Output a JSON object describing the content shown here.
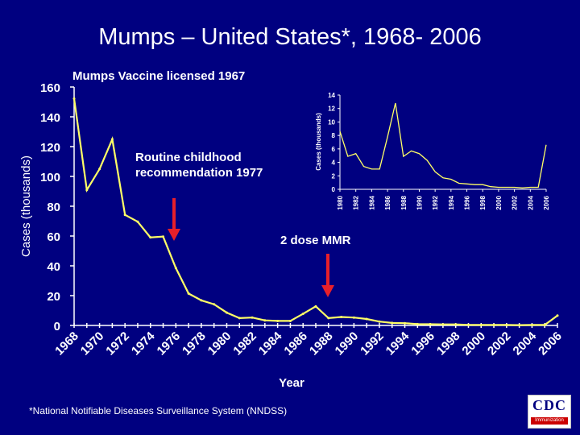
{
  "title": "Mumps – United States*, 1968- 2006",
  "footnote": "*National Notifiable Diseases Surveillance System (NNDSS)",
  "logo": {
    "letters": "CDC",
    "band_text": "Immunization"
  },
  "colors": {
    "background": "#000080",
    "line": "#ffff66",
    "text": "#ffffff",
    "arrow": "#e8202a"
  },
  "chart_data": [
    {
      "type": "line",
      "title": "",
      "xlabel": "Year",
      "ylabel": "Cases (thousands)",
      "ylim": [
        0,
        160
      ],
      "yticks": [
        0,
        20,
        40,
        60,
        80,
        100,
        120,
        140,
        160
      ],
      "xticks": [
        "1968",
        "1970",
        "1972",
        "1974",
        "1976",
        "1978",
        "1980",
        "1982",
        "1984",
        "1986",
        "1988",
        "1990",
        "1992",
        "1994",
        "1996",
        "1998",
        "2000",
        "2002",
        "2004",
        "2006"
      ],
      "grid": false,
      "x": [
        1968,
        1969,
        1970,
        1971,
        1972,
        1973,
        1974,
        1975,
        1976,
        1977,
        1978,
        1979,
        1980,
        1981,
        1982,
        1983,
        1984,
        1985,
        1986,
        1987,
        1988,
        1989,
        1990,
        1991,
        1992,
        1993,
        1994,
        1995,
        1996,
        1997,
        1998,
        1999,
        2000,
        2001,
        2002,
        2003,
        2004,
        2005,
        2006
      ],
      "values": [
        152.2,
        90.9,
        105.0,
        124.9,
        74.2,
        69.6,
        59.1,
        59.6,
        38.5,
        21.4,
        16.8,
        14.2,
        8.6,
        4.9,
        5.3,
        3.4,
        3.0,
        3.0,
        7.8,
        12.8,
        4.9,
        5.7,
        5.3,
        4.3,
        2.6,
        1.7,
        1.5,
        0.9,
        0.8,
        0.7,
        0.7,
        0.4,
        0.3,
        0.3,
        0.3,
        0.2,
        0.3,
        0.3,
        6.6
      ],
      "annotations": [
        {
          "text": "Mumps Vaccine licensed 1967",
          "year": 1967
        },
        {
          "text_lines": [
            "Routine childhood",
            "recommendation 1977"
          ],
          "year": 1977,
          "arrow": true
        },
        {
          "text": "2 dose MMR",
          "year": 1989,
          "arrow": true
        }
      ]
    },
    {
      "type": "line",
      "title": "",
      "ylabel": "Cases (thousands)",
      "ylim": [
        0,
        14
      ],
      "yticks": [
        0,
        2,
        4,
        6,
        8,
        10,
        12,
        14
      ],
      "xticks": [
        "1980",
        "1982",
        "1984",
        "1986",
        "1988",
        "1990",
        "1992",
        "1994",
        "1996",
        "1998",
        "2000",
        "2002",
        "2004",
        "2006"
      ],
      "grid": false,
      "x": [
        1980,
        1981,
        1982,
        1983,
        1984,
        1985,
        1986,
        1987,
        1988,
        1989,
        1990,
        1991,
        1992,
        1993,
        1994,
        1995,
        1996,
        1997,
        1998,
        1999,
        2000,
        2001,
        2002,
        2003,
        2004,
        2005,
        2006
      ],
      "values": [
        8.6,
        4.9,
        5.3,
        3.4,
        3.0,
        3.0,
        7.8,
        12.8,
        4.9,
        5.7,
        5.3,
        4.3,
        2.6,
        1.7,
        1.5,
        0.9,
        0.8,
        0.7,
        0.7,
        0.4,
        0.3,
        0.3,
        0.3,
        0.2,
        0.3,
        0.3,
        6.6
      ]
    }
  ]
}
